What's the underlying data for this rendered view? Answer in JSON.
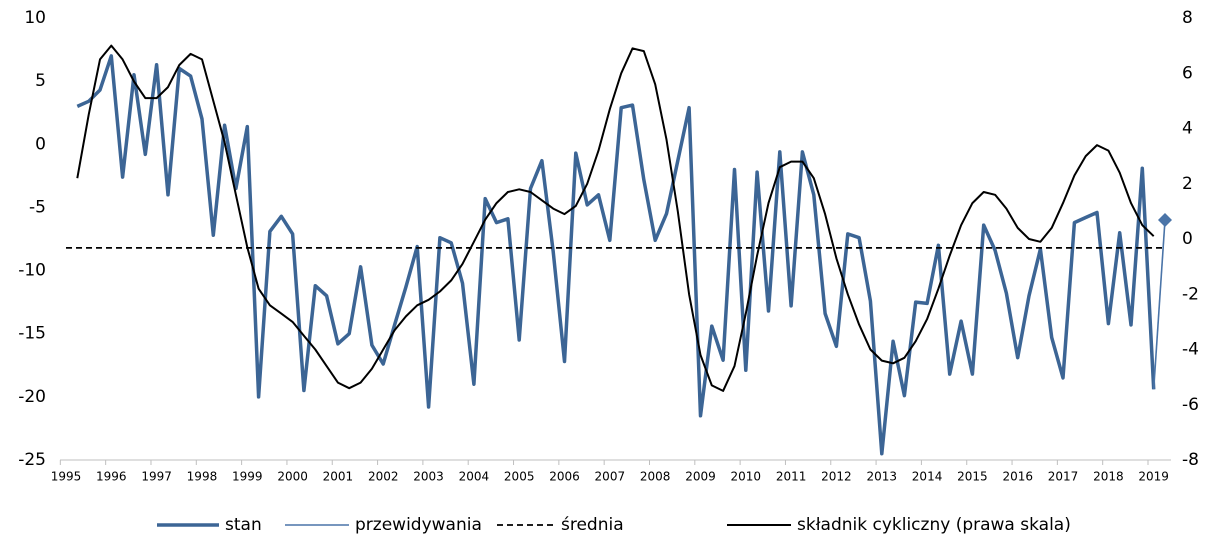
{
  "chart_data": {
    "type": "line",
    "categories": [
      "1995",
      null,
      null,
      null,
      "1996",
      null,
      null,
      null,
      "1997",
      null,
      null,
      null,
      "1998",
      null,
      null,
      null,
      "1999",
      null,
      null,
      null,
      "2000",
      null,
      null,
      null,
      "2001",
      null,
      null,
      null,
      "2002",
      null,
      null,
      null,
      "2003",
      null,
      null,
      null,
      "2004",
      null,
      null,
      null,
      "2005",
      null,
      null,
      null,
      "2006",
      null,
      null,
      null,
      "2007",
      null,
      null,
      null,
      "2008",
      null,
      null,
      null,
      "2009",
      null,
      null,
      null,
      "2010",
      null,
      null,
      null,
      "2011",
      null,
      null,
      null,
      "2012",
      null,
      null,
      null,
      "2013",
      null,
      null,
      null,
      "2014",
      null,
      null,
      null,
      "2015",
      null,
      null,
      null,
      "2016",
      null,
      null,
      null,
      "2017",
      null,
      null,
      null,
      "2018",
      null,
      null,
      null,
      "2019",
      null
    ],
    "ylim": [
      -25,
      10
    ],
    "yticks": [
      10,
      5,
      0,
      -5,
      -10,
      -15,
      -20,
      -25
    ],
    "y2lim": [
      -8,
      8
    ],
    "y2ticks": [
      8,
      6,
      4,
      2,
      0,
      -2,
      -4,
      -6,
      -8
    ],
    "legend": "bottom",
    "series": [
      {
        "name": "stan",
        "color": "#3c6595",
        "width": 3.5,
        "values": [
          null,
          3.0,
          3.4,
          4.3,
          7.0,
          -2.6,
          5.5,
          -0.8,
          6.3,
          -4.0,
          6.0,
          5.4,
          2.0,
          -7.2,
          1.5,
          -3.5,
          1.4,
          -20.0,
          -6.9,
          -5.7,
          -7.1,
          -19.5,
          -11.2,
          -12.0,
          -15.8,
          -15.0,
          -9.7,
          -15.9,
          -17.4,
          -14.3,
          -11.3,
          -8.1,
          -20.8,
          -7.4,
          -7.8,
          -11.0,
          -19.0,
          -4.3,
          -6.2,
          -5.9,
          -15.5,
          -3.5,
          -1.3,
          -8.5,
          -17.2,
          -0.7,
          -4.8,
          -4.0,
          -7.6,
          2.9,
          3.1,
          -2.8,
          -7.6,
          -5.5,
          -1.3,
          2.9,
          -21.5,
          -14.4,
          -17.1,
          -2.0,
          -17.9,
          -2.2,
          -13.2,
          -0.6,
          -12.8,
          -0.6,
          -4.0,
          -13.4,
          -16.0,
          -7.1,
          -7.4,
          -12.4,
          -24.5,
          -15.6,
          -19.9,
          -12.5,
          -12.6,
          -8.0,
          -18.2,
          -14.0,
          -18.2,
          -6.4,
          -8.4,
          -11.8,
          -16.9,
          -12.0,
          -8.3,
          -15.3,
          -18.5,
          -6.2,
          -5.8,
          -5.4,
          -14.2,
          -7.0,
          -14.3,
          -1.9,
          -19.4,
          null
        ]
      },
      {
        "name": "przewidywania",
        "color": "#4a74a8",
        "width": 1.6,
        "marker": "diamond",
        "values": [
          null,
          null,
          null,
          null,
          null,
          null,
          null,
          null,
          null,
          null,
          null,
          null,
          null,
          null,
          null,
          null,
          null,
          null,
          null,
          null,
          null,
          null,
          null,
          null,
          null,
          null,
          null,
          null,
          null,
          null,
          null,
          null,
          null,
          null,
          null,
          null,
          null,
          null,
          null,
          null,
          null,
          null,
          null,
          null,
          null,
          null,
          null,
          null,
          null,
          null,
          null,
          null,
          null,
          null,
          null,
          null,
          null,
          null,
          null,
          null,
          null,
          null,
          null,
          null,
          null,
          null,
          null,
          null,
          null,
          null,
          null,
          null,
          null,
          null,
          null,
          null,
          null,
          null,
          null,
          null,
          null,
          null,
          null,
          null,
          null,
          null,
          null,
          null,
          null,
          null,
          null,
          null,
          null,
          null,
          null,
          null,
          -19.4,
          -6.0
        ]
      },
      {
        "name": "średnia",
        "color": "#000000",
        "width": 1.8,
        "dash": true,
        "value": -8.2
      },
      {
        "name": "składnik cykliczny (prawa skala)",
        "color": "#000000",
        "width": 2,
        "axis": "y2",
        "values": [
          null,
          2.2,
          4.5,
          6.5,
          7.0,
          6.5,
          5.7,
          5.1,
          5.1,
          5.5,
          6.3,
          6.7,
          6.5,
          5.0,
          3.5,
          1.6,
          -0.3,
          -1.8,
          -2.4,
          -2.7,
          -3.0,
          -3.5,
          -4.0,
          -4.6,
          -5.2,
          -5.4,
          -5.2,
          -4.7,
          -4.0,
          -3.3,
          -2.8,
          -2.4,
          -2.2,
          -1.9,
          -1.5,
          -0.9,
          -0.1,
          0.7,
          1.3,
          1.7,
          1.8,
          1.7,
          1.4,
          1.1,
          0.9,
          1.2,
          2.0,
          3.2,
          4.7,
          6.0,
          6.9,
          6.8,
          5.6,
          3.6,
          1.0,
          -2.0,
          -4.2,
          -5.3,
          -5.5,
          -4.6,
          -2.7,
          -0.6,
          1.3,
          2.6,
          2.8,
          2.8,
          2.2,
          0.9,
          -0.7,
          -2.0,
          -3.1,
          -4.0,
          -4.4,
          -4.5,
          -4.3,
          -3.7,
          -2.9,
          -1.8,
          -0.6,
          0.5,
          1.3,
          1.7,
          1.6,
          1.1,
          0.4,
          0.0,
          -0.1,
          0.4,
          1.3,
          2.3,
          3.0,
          3.4,
          3.2,
          2.4,
          1.3,
          0.5,
          0.1,
          null
        ]
      }
    ]
  }
}
